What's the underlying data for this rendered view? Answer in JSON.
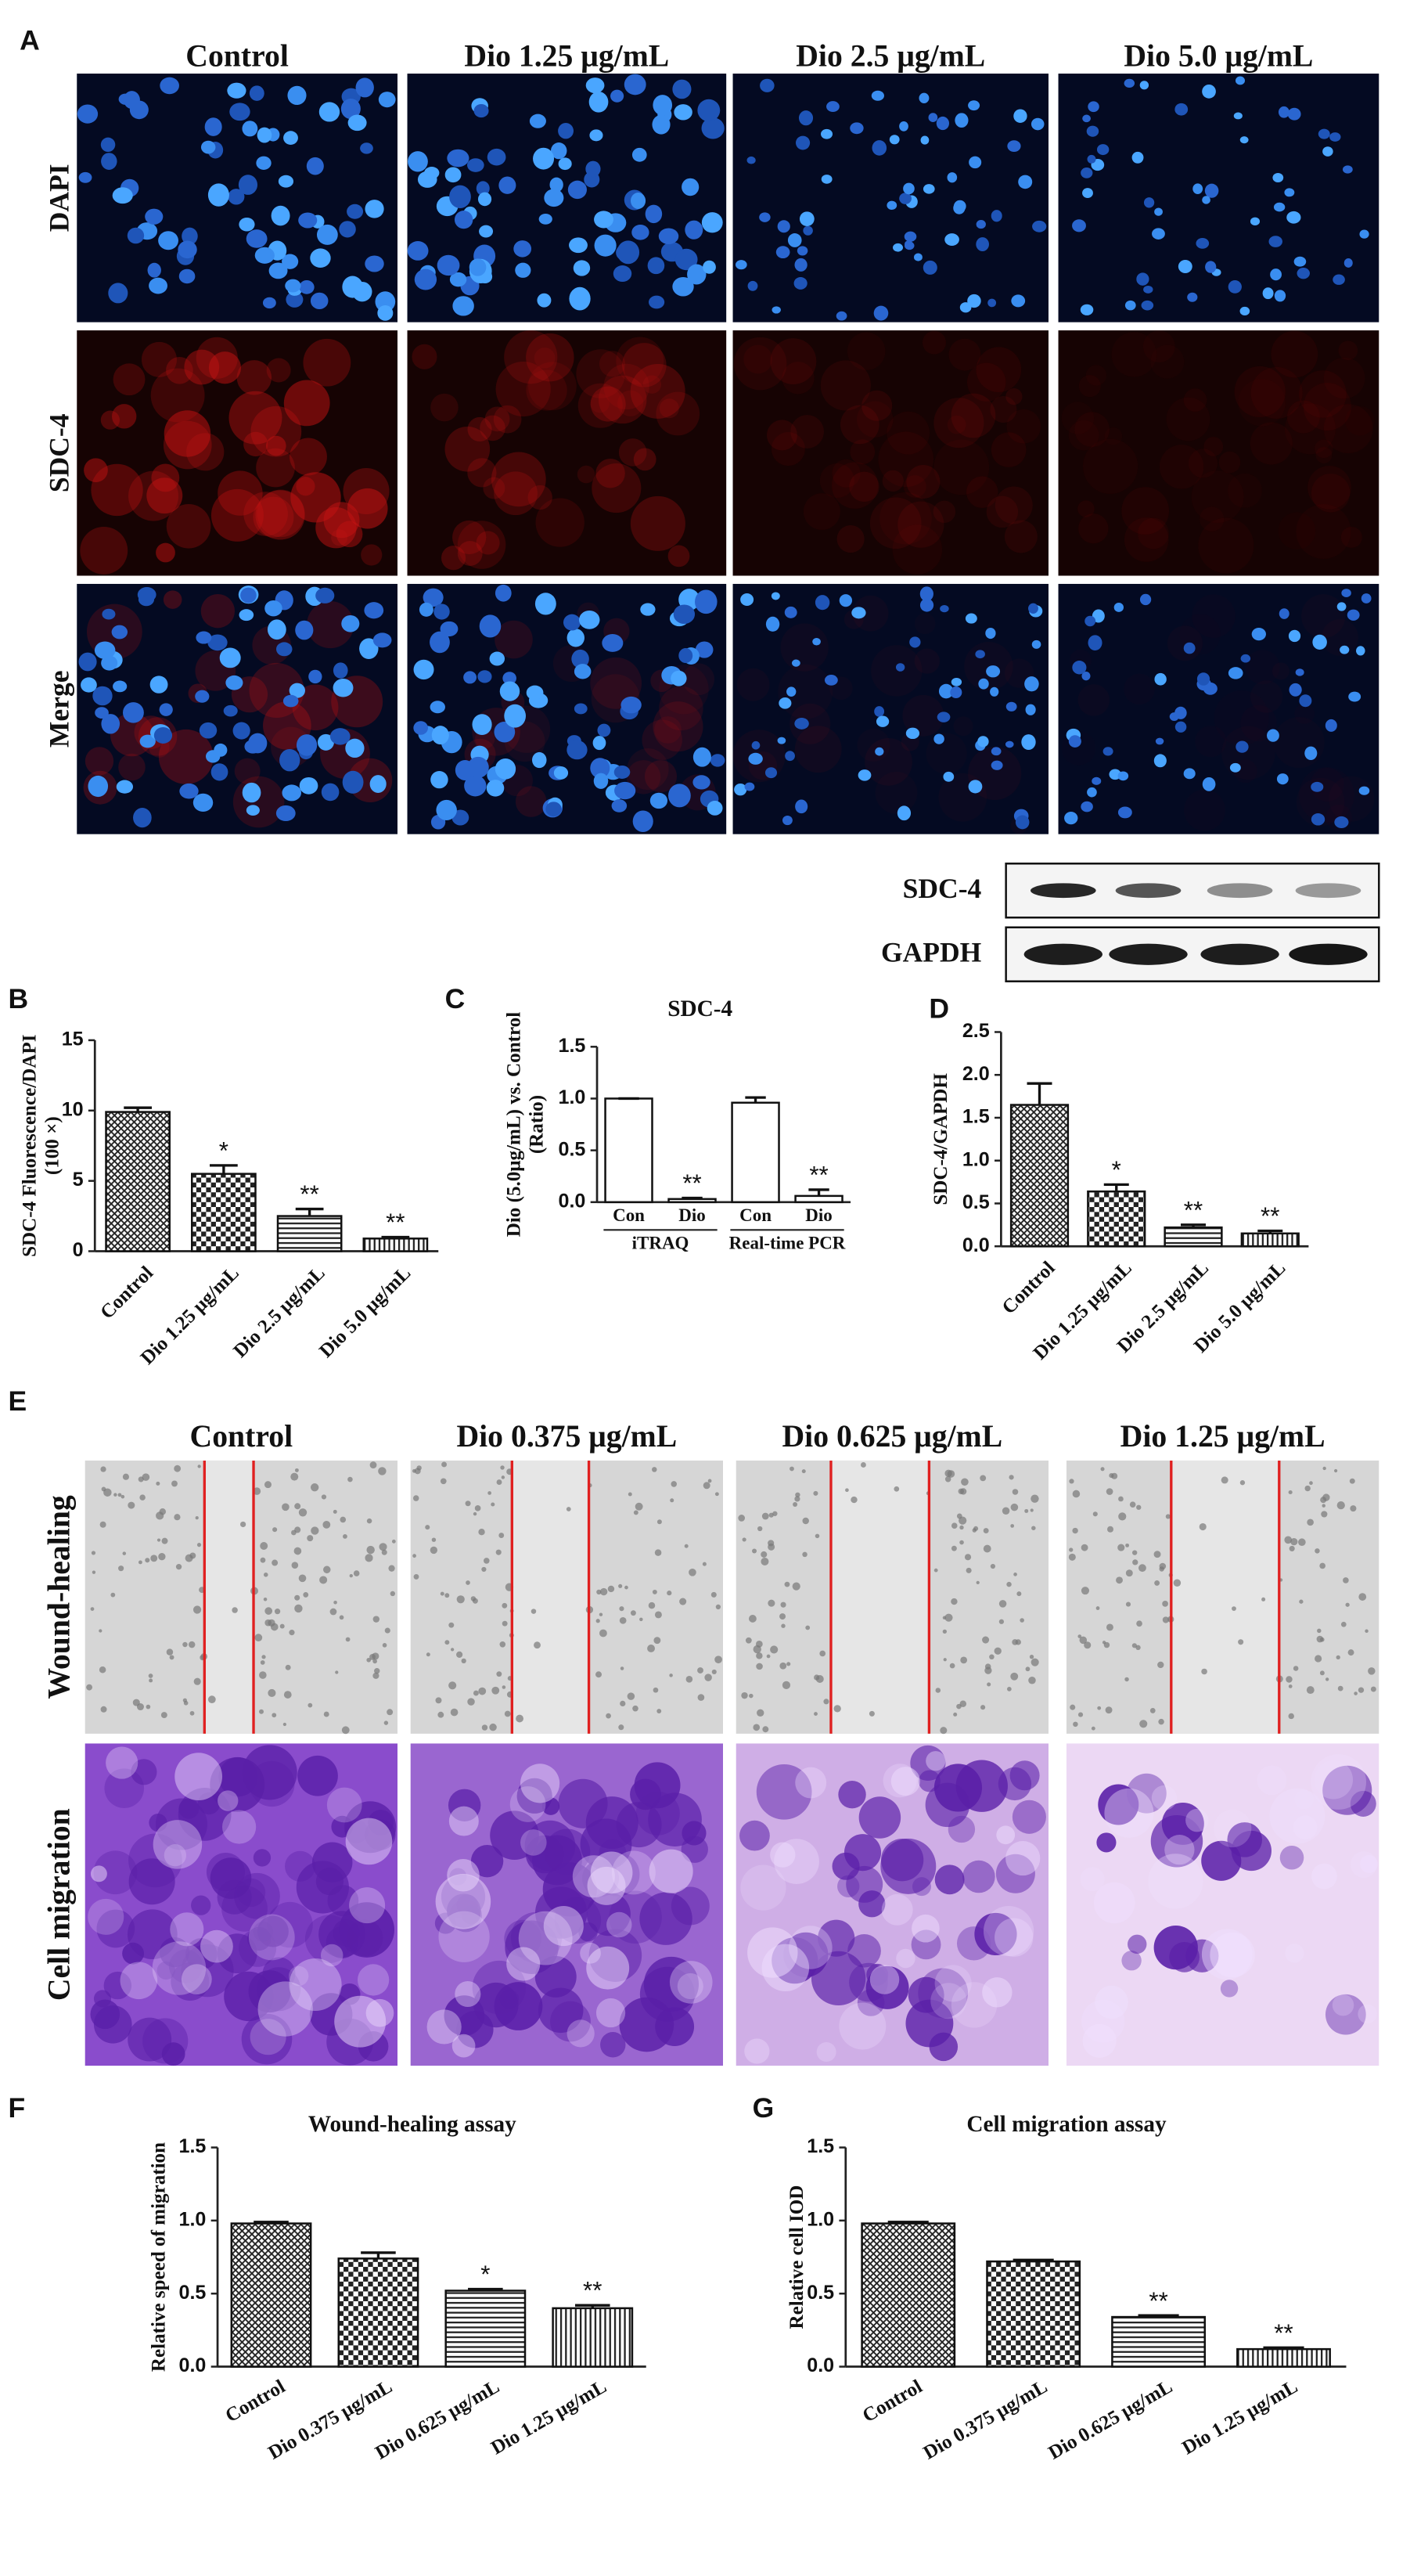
{
  "figure": {
    "panel_labels": [
      "A",
      "B",
      "C",
      "D",
      "E",
      "F",
      "G"
    ],
    "panel_a": {
      "columns": [
        "Control",
        "Dio 1.25 μg/mL",
        "Dio 2.5 μg/mL",
        "Dio 5.0 μg/mL"
      ],
      "rows": [
        "DAPI",
        "SDC-4",
        "Merge"
      ]
    },
    "blot": {
      "rows": [
        "SDC-4",
        "GAPDH"
      ]
    },
    "panel_e": {
      "columns": [
        "Control",
        "Dio 0.375 μg/mL",
        "Dio 0.625 μg/mL",
        "Dio 1.25 μg/mL"
      ],
      "rows": [
        "Wound-healing",
        "Cell migration"
      ]
    }
  },
  "chart_data": [
    {
      "type": "bar",
      "ylabel": [
        "SDC-4 Fluorescence/DAPI",
        "(100 ×)"
      ],
      "categories": [
        "Control",
        "Dio 1.25 μg/mL",
        "Dio 2.5 μg/mL",
        "Dio 5.0 μg/mL"
      ],
      "values": [
        9.9,
        5.5,
        2.5,
        0.9
      ],
      "errors": [
        0.3,
        0.6,
        0.5,
        0.1
      ],
      "annotations": [
        null,
        "*",
        "**",
        "**"
      ],
      "patterns": [
        "crosshatch",
        "checker",
        "hlines",
        "vlines"
      ],
      "ylim": [
        0,
        15
      ],
      "yticks": [
        0,
        5,
        10,
        15
      ]
    },
    {
      "type": "bar",
      "title": "SDC-4",
      "ylabel": [
        "Dio (5.0μg/mL) vs. Control",
        "(Ratio)"
      ],
      "categories": [
        "Con",
        "Dio",
        "Con",
        "Dio"
      ],
      "groups": [
        "iTRAQ",
        "Real-time PCR"
      ],
      "values": [
        1.0,
        0.03,
        0.96,
        0.06
      ],
      "errors": [
        0,
        0.01,
        0.05,
        0.06
      ],
      "annotations": [
        null,
        "**",
        null,
        "**"
      ],
      "patterns": [
        "none",
        "none",
        "none",
        "none"
      ],
      "ylim": [
        0,
        1.5
      ],
      "yticks": [
        {
          "value": 0,
          "label": "0.0"
        },
        {
          "value": 0.5,
          "label": "0.5"
        },
        {
          "value": 1,
          "label": "1.0"
        },
        {
          "value": 1.5,
          "label": "1.5"
        }
      ]
    },
    {
      "type": "bar",
      "ylabel": [
        "SDC-4/GAPDH"
      ],
      "categories": [
        "Control",
        "Dio 1.25 μg/mL",
        "Dio 2.5 μg/mL",
        "Dio 5.0 μg/mL"
      ],
      "values": [
        1.65,
        0.64,
        0.22,
        0.15
      ],
      "errors": [
        0.25,
        0.08,
        0.03,
        0.03
      ],
      "annotations": [
        null,
        "*",
        "**",
        "**"
      ],
      "patterns": [
        "crosshatch",
        "checker",
        "hlines",
        "vlines"
      ],
      "ylim": [
        0,
        2.5
      ],
      "yticks": [
        {
          "value": 0,
          "label": "0.0"
        },
        {
          "value": 0.5,
          "label": "0.5"
        },
        {
          "value": 1,
          "label": "1.0"
        },
        {
          "value": 1.5,
          "label": "1.5"
        },
        {
          "value": 2,
          "label": "2.0"
        },
        {
          "value": 2.5,
          "label": "2.5"
        }
      ]
    },
    {
      "type": "bar",
      "title": "Wound-healing assay",
      "ylabel": [
        "Relative speed of migration"
      ],
      "categories": [
        "Control",
        "Dio 0.375 μg/mL",
        "Dio 0.625 μg/mL",
        "Dio 1.25 μg/mL"
      ],
      "values": [
        0.98,
        0.74,
        0.52,
        0.4
      ],
      "errors": [
        0.01,
        0.04,
        0.01,
        0.02
      ],
      "annotations": [
        null,
        null,
        "*",
        "**"
      ],
      "patterns": [
        "crosshatch",
        "checker",
        "hlines",
        "vlines"
      ],
      "ylim": [
        0,
        1.5
      ],
      "yticks": [
        {
          "value": 0,
          "label": "0.0"
        },
        {
          "value": 0.5,
          "label": "0.5"
        },
        {
          "value": 1,
          "label": "1.0"
        },
        {
          "value": 1.5,
          "label": "1.5"
        }
      ]
    },
    {
      "type": "bar",
      "title": "Cell migration assay",
      "ylabel": [
        "Relative cell IOD"
      ],
      "categories": [
        "Control",
        "Dio 0.375 μg/mL",
        "Dio 0.625 μg/mL",
        "Dio 1.25 μg/mL"
      ],
      "values": [
        0.98,
        0.72,
        0.34,
        0.12
      ],
      "errors": [
        0.01,
        0.01,
        0.01,
        0.01
      ],
      "annotations": [
        null,
        null,
        "**",
        "**"
      ],
      "patterns": [
        "crosshatch",
        "checker",
        "hlines",
        "vlines"
      ],
      "ylim": [
        0,
        1.5
      ],
      "yticks": [
        {
          "value": 0,
          "label": "0.0"
        },
        {
          "value": 0.5,
          "label": "0.5"
        },
        {
          "value": 1,
          "label": "1.0"
        },
        {
          "value": 1.5,
          "label": "1.5"
        }
      ]
    }
  ]
}
